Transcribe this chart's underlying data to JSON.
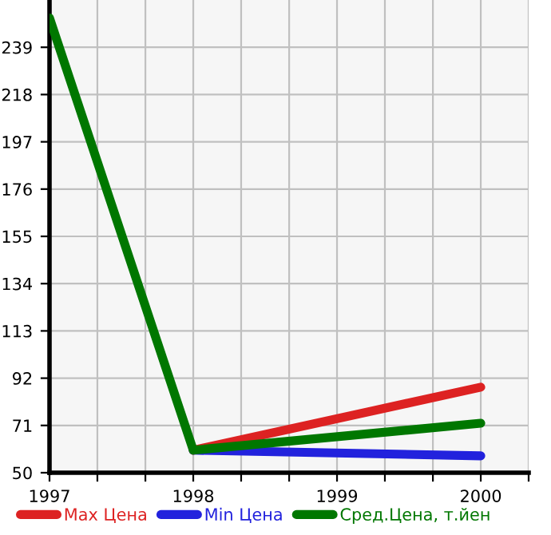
{
  "chart_data": {
    "type": "line",
    "x": [
      1997,
      1998,
      2000
    ],
    "series": [
      {
        "name": "Max Цена",
        "color": "#dd2222",
        "values": [
          null,
          60,
          88
        ]
      },
      {
        "name": "Min Цена",
        "color": "#2222dd",
        "values": [
          null,
          60,
          57.5
        ]
      },
      {
        "name": "Сред.Цена, т.йен",
        "color": "#007700",
        "values": [
          252,
          60,
          72
        ]
      }
    ],
    "xlim": [
      1997,
      2000.333
    ],
    "xticks": [
      1997,
      {
        "value": 1997.333,
        "label": null
      },
      {
        "value": 1997.667,
        "label": null
      },
      1998,
      {
        "value": 1998.333,
        "label": null
      },
      {
        "value": 1998.667,
        "label": null
      },
      1999,
      {
        "value": 1999.333,
        "label": null
      },
      {
        "value": 1999.667,
        "label": null
      },
      2000,
      {
        "value": 2000.333,
        "label": null
      }
    ],
    "ylim": [
      50,
      260
    ],
    "yticks": [
      50,
      71,
      92,
      113,
      134,
      155,
      176,
      197,
      218,
      239
    ],
    "grid": true,
    "legend": "bottom",
    "marker": "none",
    "line_style": "solid"
  }
}
